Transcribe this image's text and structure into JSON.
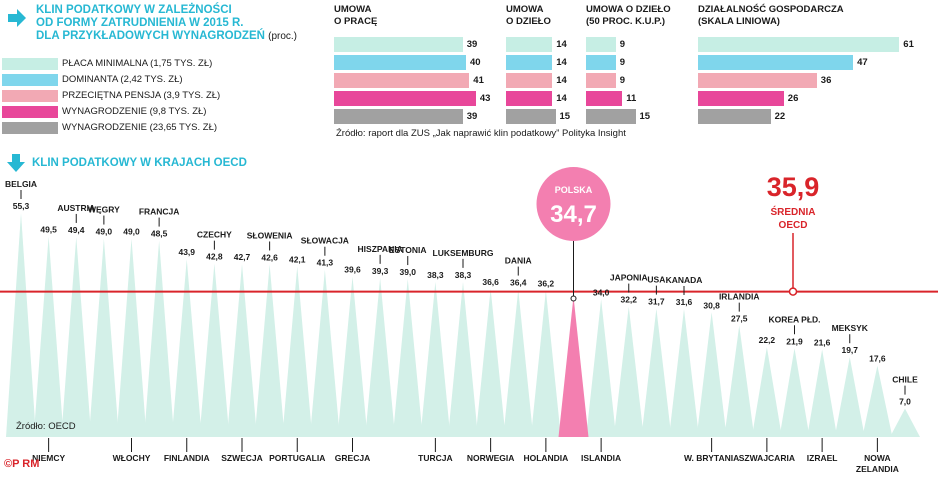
{
  "top_section": {
    "title_lines": [
      "KLIN PODATKOWY W ZALEŻNOŚCI",
      "OD FORMY ZATRUDNIENIA W 2015 R.",
      "DLA PRZYKŁADOWYCH WYNAGRODZEŃ"
    ],
    "unit_note": "(proc.)",
    "legend": [
      {
        "label": "PŁACA MINIMALNA (1,75 TYS. ZŁ)",
        "color": "#c6eee4"
      },
      {
        "label": "DOMINANTA (2,42 TYS. ZŁ)",
        "color": "#7fd6ec"
      },
      {
        "label": "PRZECIĘTNA PENSJA (3,9 TYS. ZŁ)",
        "color": "#f2a9b4"
      },
      {
        "label": "WYNAGRODZENIE (9,8 TYS. ZŁ)",
        "color": "#e8479a"
      },
      {
        "label": "WYNAGRODZENIE (23,65 TYS. ZŁ)",
        "color": "#a1a1a1"
      }
    ],
    "source": "Źródło: raport dla ZUS „Jak naprawić klin podatkowy” Polityka Insight",
    "icon": "arrow-right-icon"
  },
  "oecd_section": {
    "title": "KLIN PODATKOWY W KRAJACH OECD",
    "source": "Źródło: OECD",
    "logo": "©P RM",
    "highlight_label": "POLSKA",
    "highlight_value": "34,7",
    "avg_value": "35,9",
    "avg_label_lines": [
      "ŚREDNIA",
      "OECD"
    ],
    "icon": "arrow-down-icon",
    "colors": {
      "peak": "#d3f0e8",
      "highlight": "#f37fb0",
      "avg_line": "#d9242a",
      "title": "#27b8d3"
    }
  },
  "chart_data": [
    {
      "type": "bar",
      "orientation": "horizontal",
      "title": "KLIN PODATKOWY W ZALEŻNOŚCI OD FORMY ZATRUDNIENIA W 2015 R. DLA PRZYKŁADOWYCH WYNAGRODZEŃ",
      "unit": "proc.",
      "panels": [
        {
          "title": "UMOWA O PRACĘ",
          "values": [
            39,
            40,
            41,
            43,
            39
          ]
        },
        {
          "title": "UMOWA O DZIEŁO",
          "values": [
            14,
            14,
            14,
            14,
            15
          ]
        },
        {
          "title": "UMOWA O DZIEŁO (50 PROC. K.U.P.)",
          "values": [
            9,
            9,
            9,
            11,
            15
          ]
        },
        {
          "title": "DZIAŁALNOŚĆ GOSPODARCZA (SKALA LINIOWA)",
          "values": [
            61,
            47,
            36,
            26,
            22
          ]
        }
      ],
      "series_names": [
        "PŁACA MINIMALNA (1,75 TYS. ZŁ)",
        "DOMINANTA (2,42 TYS. ZŁ)",
        "PRZECIĘTNA PENSJA (3,9 TYS. ZŁ)",
        "WYNAGRODZENIE (9,8 TYS. ZŁ)",
        "WYNAGRODZENIE (23,65 TYS. ZŁ)"
      ],
      "series_colors": [
        "#c6eee4",
        "#7fd6ec",
        "#f2a9b4",
        "#e8479a",
        "#a1a1a1"
      ]
    },
    {
      "type": "bar",
      "title": "KLIN PODATKOWY W KRAJACH OECD",
      "categories": [
        "BELGIA",
        "NIEMCY",
        "AUSTRIA",
        "WĘGRY",
        "WŁOCHY",
        "FRANCJA",
        "FINLANDIA",
        "CZECHY",
        "SZWECJA",
        "SŁOWENIA",
        "PORTUGALIA",
        "SŁOWACJA",
        "GRECJA",
        "HISZPANIA",
        "ESTONIA",
        "TURCJA",
        "LUKSEMBURG",
        "NORWEGIA",
        "DANIA",
        "HOLANDIA",
        "POLSKA",
        "ISLANDIA",
        "JAPONIA",
        "USA",
        "KANADA",
        "W. BRYTANIA",
        "IRLANDIA",
        "SZWAJCARIA",
        "KOREA PŁD.",
        "IZRAEL",
        "MEKSYK",
        "NOWA ZELANDIA",
        "CHILE"
      ],
      "label_position": [
        "top",
        "bottom",
        "top",
        "top",
        "bottom",
        "top",
        "bottom",
        "top",
        "bottom",
        "top",
        "bottom",
        "top",
        "bottom",
        "top",
        "top",
        "bottom",
        "top",
        "bottom",
        "top",
        "bottom",
        "center",
        "bottom",
        "top",
        "top",
        "top",
        "bottom",
        "top",
        "bottom",
        "top",
        "bottom",
        "top",
        "bottom",
        "top"
      ],
      "values": [
        55.3,
        49.5,
        49.4,
        49.0,
        49.0,
        48.5,
        43.9,
        42.8,
        42.7,
        42.6,
        42.1,
        41.3,
        39.6,
        39.3,
        39.0,
        38.3,
        38.3,
        36.6,
        36.4,
        36.2,
        34.7,
        34.0,
        32.2,
        31.7,
        31.6,
        30.8,
        27.5,
        22.2,
        21.9,
        21.6,
        19.7,
        17.6,
        7.0
      ],
      "value_labels": [
        "55,3",
        "49,5",
        "49,4",
        "49,0",
        "49,0",
        "48,5",
        "43,9",
        "42,8",
        "42,7",
        "42,6",
        "42,1",
        "41,3",
        "39,6",
        "39,3",
        "39,0",
        "38,3",
        "38,3",
        "36,6",
        "36,4",
        "36,2",
        "34,7",
        "34,0",
        "32,2",
        "31,7",
        "31,6",
        "30,8",
        "27,5",
        "22,2",
        "21,9",
        "21,6",
        "19,7",
        "17,6",
        "7,0"
      ],
      "reference_line": {
        "label": "ŚREDNIA OECD",
        "value": 35.9
      }
    }
  ]
}
